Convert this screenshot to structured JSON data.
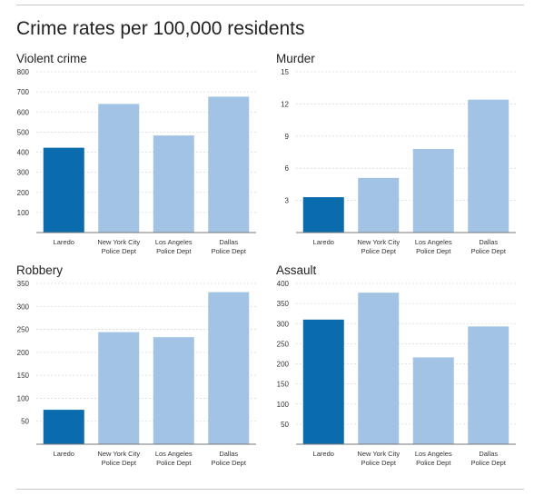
{
  "title": "Crime rates per 100,000 residents",
  "colors": {
    "highlight": "#0b6cad",
    "other": "#a2c3e3",
    "grid": "#d9d9d9",
    "axis": "#777777"
  },
  "chart_data": [
    {
      "type": "bar",
      "title": "Violent crime",
      "categories": [
        [
          "Laredo"
        ],
        [
          "New York City",
          "Police Dept"
        ],
        [
          "Los Angeles",
          "Police Dept"
        ],
        [
          "Dallas",
          "Police Dept"
        ]
      ],
      "values": [
        422,
        640,
        483,
        676
      ],
      "highlight_index": 0,
      "ylim": [
        0,
        800
      ],
      "yticks": [
        100,
        200,
        300,
        400,
        500,
        600,
        700,
        800
      ],
      "grid": true
    },
    {
      "type": "bar",
      "title": "Murder",
      "categories": [
        [
          "Laredo"
        ],
        [
          "New York City",
          "Police Dept"
        ],
        [
          "Los Angeles",
          "Police Dept"
        ],
        [
          "Dallas",
          "Police Dept"
        ]
      ],
      "values": [
        3.3,
        5.1,
        7.8,
        12.4
      ],
      "highlight_index": 0,
      "ylim": [
        0,
        15
      ],
      "yticks": [
        3,
        6,
        9,
        12,
        15
      ],
      "grid": true
    },
    {
      "type": "bar",
      "title": "Robbery",
      "categories": [
        [
          "Laredo"
        ],
        [
          "New York City",
          "Police Dept"
        ],
        [
          "Los Angeles",
          "Police Dept"
        ],
        [
          "Dallas",
          "Police Dept"
        ]
      ],
      "values": [
        75,
        244,
        233,
        331
      ],
      "highlight_index": 0,
      "ylim": [
        0,
        350
      ],
      "yticks": [
        50,
        100,
        150,
        200,
        250,
        300,
        350
      ],
      "grid": true
    },
    {
      "type": "bar",
      "title": "Assault",
      "categories": [
        [
          "Laredo"
        ],
        [
          "New York City",
          "Police Dept"
        ],
        [
          "Los Angeles",
          "Police Dept"
        ],
        [
          "Dallas",
          "Police Dept"
        ]
      ],
      "values": [
        310,
        377,
        216,
        293
      ],
      "highlight_index": 0,
      "ylim": [
        0,
        400
      ],
      "yticks": [
        50,
        100,
        150,
        200,
        250,
        300,
        350,
        400
      ],
      "grid": true
    }
  ]
}
